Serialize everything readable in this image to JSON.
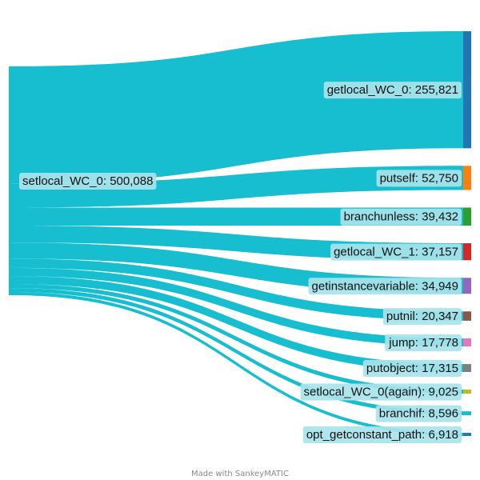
{
  "chart_data": {
    "type": "sankey",
    "credit": "Made with SankeyMATIC",
    "flow_color": "#17becf",
    "source": {
      "name": "setlocal_WC_0",
      "value": 500088,
      "label": "setlocal_WC_0: 500,088",
      "color": "#17becf"
    },
    "targets": [
      {
        "name": "getlocal_WC_0",
        "value": 255821,
        "label": "getlocal_WC_0: 255,821",
        "color": "#1f77b4"
      },
      {
        "name": "putself",
        "value": 52750,
        "label": "putself: 52,750",
        "color": "#ff7f0e"
      },
      {
        "name": "branchunless",
        "value": 39432,
        "label": "branchunless: 39,432",
        "color": "#2ca02c"
      },
      {
        "name": "getlocal_WC_1",
        "value": 37157,
        "label": "getlocal_WC_1: 37,157",
        "color": "#d62728"
      },
      {
        "name": "getinstancevariable",
        "value": 34949,
        "label": "getinstancevariable: 34,949",
        "color": "#9467bd"
      },
      {
        "name": "putnil",
        "value": 20347,
        "label": "putnil: 20,347",
        "color": "#8c564b"
      },
      {
        "name": "jump",
        "value": 17778,
        "label": "jump: 17,778",
        "color": "#e377c2"
      },
      {
        "name": "putobject",
        "value": 17315,
        "label": "putobject: 17,315",
        "color": "#7f7f7f"
      },
      {
        "name": "setlocal_WC_0(again)",
        "value": 9025,
        "label": "setlocal_WC_0(again): 9,025",
        "color": "#bcbd22"
      },
      {
        "name": "branchif",
        "value": 8596,
        "label": "branchif: 8,596",
        "color": "#17becf"
      },
      {
        "name": "opt_getconstant_path",
        "value": 6918,
        "label": "opt_getconstant_path: 6,918",
        "color": "#1f77b4"
      }
    ]
  }
}
